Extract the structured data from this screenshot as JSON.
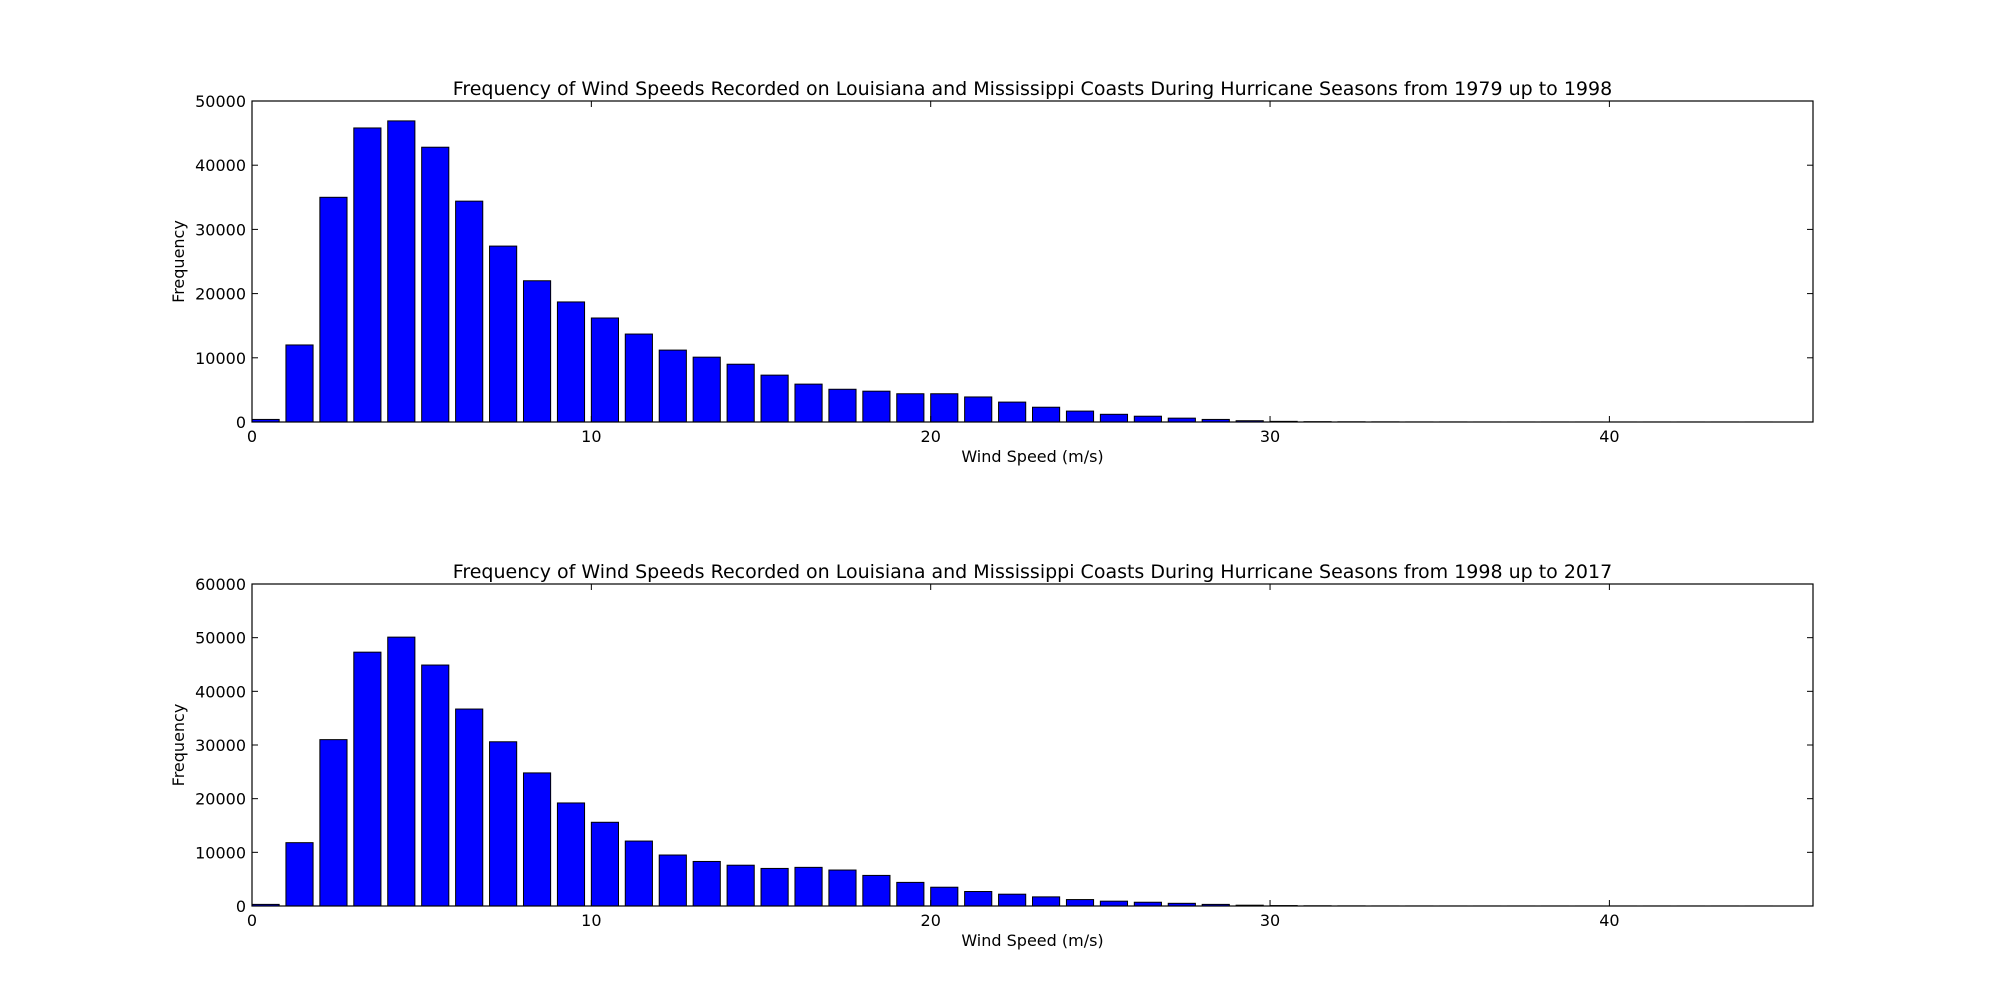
{
  "chart_data": [
    {
      "type": "bar",
      "title": "Frequency of Wind Speeds Recorded on Louisiana and Mississippi Coasts During Hurricane Seasons from 1979 up to 1998",
      "xlabel": "Wind Speed (m/s)",
      "ylabel": "Frequency",
      "xlim": [
        0,
        46
      ],
      "ylim": [
        0,
        50000
      ],
      "x_ticks": [
        0,
        10,
        20,
        30,
        40
      ],
      "y_ticks": [
        0,
        10000,
        20000,
        30000,
        40000,
        50000
      ],
      "bar_color": "#0000ff",
      "bar_edge_color": "#000000",
      "grid": false,
      "categories": [
        0,
        1,
        2,
        3,
        4,
        5,
        6,
        7,
        8,
        9,
        10,
        11,
        12,
        13,
        14,
        15,
        16,
        17,
        18,
        19,
        20,
        21,
        22,
        23,
        24,
        25,
        26,
        27,
        28,
        29,
        30,
        31,
        32,
        33,
        34,
        35,
        36,
        37,
        38,
        39,
        40,
        41,
        42,
        43,
        44
      ],
      "values": [
        400,
        12000,
        35000,
        45800,
        46900,
        42800,
        34400,
        27400,
        22000,
        18700,
        16200,
        13700,
        11200,
        10100,
        9000,
        7300,
        5900,
        5100,
        4800,
        4400,
        4400,
        3900,
        3100,
        2300,
        1700,
        1200,
        900,
        600,
        400,
        200,
        100,
        50,
        30,
        20,
        10,
        10,
        5,
        5,
        5,
        5,
        5,
        5,
        5,
        5,
        5
      ]
    },
    {
      "type": "bar",
      "title": "Frequency of Wind Speeds Recorded on Louisiana and Mississippi Coasts During Hurricane Seasons from 1998 up to 2017",
      "xlabel": "Wind Speed (m/s)",
      "ylabel": "Frequency",
      "xlim": [
        0,
        46
      ],
      "ylim": [
        0,
        60000
      ],
      "x_ticks": [
        0,
        10,
        20,
        30,
        40
      ],
      "y_ticks": [
        0,
        10000,
        20000,
        30000,
        40000,
        50000,
        60000
      ],
      "bar_color": "#0000ff",
      "bar_edge_color": "#000000",
      "grid": false,
      "categories": [
        0,
        1,
        2,
        3,
        4,
        5,
        6,
        7,
        8,
        9,
        10,
        11,
        12,
        13,
        14,
        15,
        16,
        17,
        18,
        19,
        20,
        21,
        22,
        23,
        24,
        25,
        26,
        27,
        28,
        29,
        30,
        31,
        32,
        33,
        34,
        35,
        36,
        37,
        38,
        39,
        40,
        41,
        42,
        43,
        44
      ],
      "values": [
        300,
        11800,
        31000,
        47300,
        50100,
        44900,
        36700,
        30600,
        24800,
        19200,
        15600,
        12100,
        9500,
        8300,
        7600,
        7000,
        7200,
        6700,
        5700,
        4400,
        3500,
        2700,
        2200,
        1700,
        1200,
        900,
        700,
        500,
        300,
        150,
        80,
        40,
        20,
        10,
        10,
        5,
        5,
        5,
        5,
        5,
        5,
        5,
        5,
        5,
        5
      ]
    }
  ]
}
